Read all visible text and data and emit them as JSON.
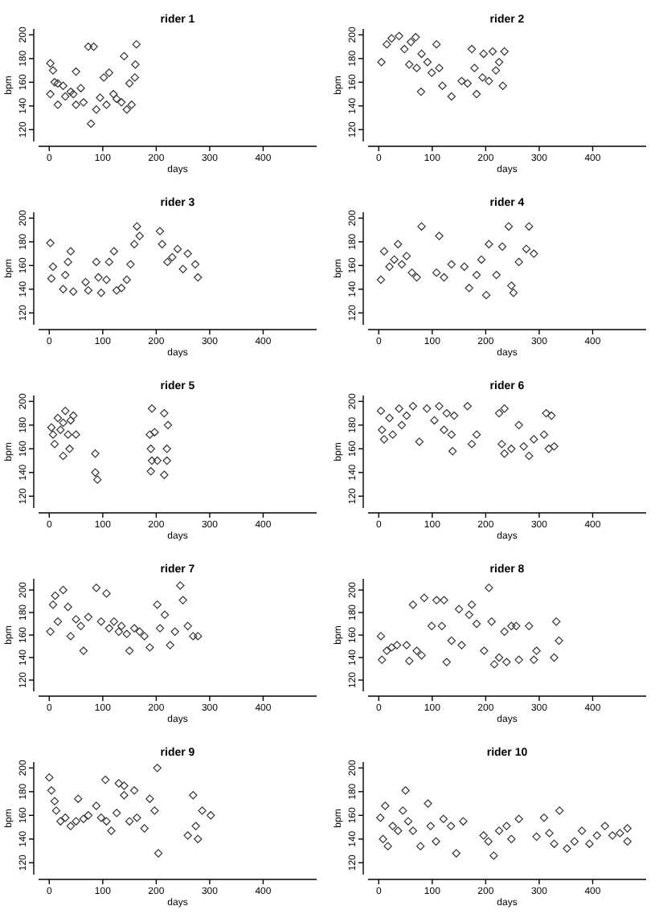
{
  "chart_data": [
    {
      "type": "scatter",
      "title": "rider 1",
      "xlabel": "days",
      "ylabel": "bpm",
      "marker": "diamond",
      "color": "#333333",
      "xlim": [
        -20,
        500
      ],
      "xticks": [
        0,
        100,
        200,
        300,
        400
      ],
      "ylim": [
        110,
        205
      ],
      "yticks": [
        120,
        140,
        160,
        180,
        200
      ],
      "x": [
        2,
        7,
        50,
        73,
        83,
        140,
        163,
        161,
        16,
        16,
        30,
        40,
        59,
        78,
        88,
        107,
        126,
        145,
        154,
        160,
        2,
        26,
        50,
        64,
        102,
        112,
        150,
        135,
        10,
        45,
        95,
        120
      ],
      "values": [
        176,
        170,
        169,
        190,
        190,
        182,
        192,
        175,
        159,
        141,
        148,
        152,
        155,
        125,
        137,
        141,
        146,
        137,
        141,
        164,
        150,
        157,
        141,
        143,
        164,
        168,
        159,
        143,
        160,
        150,
        147,
        150
      ]
    },
    {
      "type": "scatter",
      "title": "rider 2",
      "xlabel": "days",
      "ylabel": "bpm",
      "marker": "diamond",
      "color": "#333333",
      "xlim": [
        -20,
        500
      ],
      "xticks": [
        0,
        100,
        200,
        300,
        400
      ],
      "ylim": [
        110,
        205
      ],
      "yticks": [
        120,
        140,
        160,
        180,
        200
      ],
      "x": [
        5,
        15,
        24,
        38,
        48,
        60,
        69,
        57,
        71,
        80,
        91,
        99,
        108,
        113,
        79,
        119,
        136,
        155,
        166,
        174,
        179,
        183,
        194,
        196,
        206,
        213,
        219,
        225,
        232,
        235
      ],
      "values": [
        177,
        192,
        197,
        199,
        188,
        194,
        198,
        175,
        172,
        184,
        177,
        168,
        192,
        172,
        152,
        157,
        148,
        161,
        159,
        188,
        172,
        150,
        164,
        184,
        161,
        186,
        170,
        177,
        157,
        186
      ]
    },
    {
      "type": "scatter",
      "title": "rider 3",
      "xlabel": "days",
      "ylabel": "bpm",
      "marker": "diamond",
      "color": "#333333",
      "xlim": [
        -20,
        500
      ],
      "xticks": [
        0,
        100,
        200,
        300,
        400
      ],
      "ylim": [
        110,
        205
      ],
      "yticks": [
        120,
        140,
        160,
        180,
        200
      ],
      "x": [
        2,
        7,
        4,
        26,
        30,
        35,
        40,
        45,
        68,
        73,
        88,
        92,
        97,
        107,
        112,
        121,
        126,
        135,
        145,
        152,
        159,
        164,
        169,
        207,
        211,
        221,
        230,
        240,
        250,
        259,
        273,
        278
      ],
      "values": [
        179,
        159,
        149,
        140,
        152,
        163,
        172,
        138,
        146,
        139,
        163,
        150,
        137,
        148,
        163,
        172,
        139,
        141,
        148,
        161,
        178,
        193,
        185,
        189,
        178,
        163,
        167,
        174,
        157,
        170,
        161,
        150
      ]
    },
    {
      "type": "scatter",
      "title": "rider 4",
      "xlabel": "days",
      "ylabel": "bpm",
      "marker": "diamond",
      "color": "#333333",
      "xlim": [
        -20,
        500
      ],
      "xticks": [
        0,
        100,
        200,
        300,
        400
      ],
      "ylim": [
        110,
        205
      ],
      "yticks": [
        120,
        140,
        160,
        180,
        200
      ],
      "x": [
        4,
        10,
        20,
        29,
        36,
        43,
        52,
        62,
        71,
        80,
        113,
        108,
        122,
        136,
        160,
        169,
        183,
        192,
        201,
        206,
        220,
        231,
        243,
        248,
        252,
        262,
        276,
        281,
        290
      ],
      "values": [
        148,
        172,
        159,
        165,
        178,
        161,
        168,
        154,
        150,
        193,
        185,
        154,
        150,
        161,
        159,
        141,
        152,
        165,
        135,
        178,
        152,
        176,
        193,
        143,
        137,
        163,
        174,
        193,
        170
      ]
    },
    {
      "type": "scatter",
      "title": "rider 5",
      "xlabel": "days",
      "ylabel": "bpm",
      "marker": "diamond",
      "color": "#333333",
      "xlim": [
        -20,
        500
      ],
      "xticks": [
        0,
        100,
        200,
        300,
        400
      ],
      "ylim": [
        110,
        205
      ],
      "yticks": [
        120,
        140,
        160,
        180,
        200
      ],
      "x": [
        4,
        7,
        10,
        16,
        21,
        26,
        30,
        35,
        40,
        45,
        50,
        26,
        38,
        86,
        86,
        90,
        188,
        192,
        197,
        190,
        192,
        202,
        190,
        215,
        222,
        220,
        220,
        215
      ],
      "values": [
        178,
        172,
        164,
        186,
        176,
        182,
        192,
        172,
        184,
        188,
        172,
        154,
        160,
        156,
        140,
        134,
        172,
        194,
        174,
        160,
        150,
        150,
        141,
        190,
        180,
        160,
        150,
        138
      ]
    },
    {
      "type": "scatter",
      "title": "rider 6",
      "xlabel": "days",
      "ylabel": "bpm",
      "marker": "diamond",
      "color": "#333333",
      "xlim": [
        -20,
        500
      ],
      "xticks": [
        0,
        100,
        200,
        300,
        400
      ],
      "ylim": [
        110,
        205
      ],
      "yticks": [
        120,
        140,
        160,
        180,
        200
      ],
      "x": [
        4,
        6,
        10,
        20,
        26,
        38,
        43,
        52,
        64,
        76,
        90,
        104,
        113,
        122,
        127,
        136,
        141,
        138,
        166,
        174,
        183,
        225,
        235,
        230,
        235,
        248,
        262,
        271,
        281,
        290,
        309,
        313,
        323,
        318,
        328
      ],
      "values": [
        192,
        176,
        168,
        186,
        172,
        194,
        180,
        188,
        196,
        166,
        194,
        184,
        196,
        176,
        190,
        172,
        188,
        158,
        196,
        164,
        172,
        190,
        194,
        164,
        156,
        160,
        180,
        162,
        154,
        168,
        172,
        190,
        188,
        160,
        162
      ]
    },
    {
      "type": "scatter",
      "title": "rider 7",
      "xlabel": "days",
      "ylabel": "bpm",
      "marker": "diamond",
      "color": "#333333",
      "xlim": [
        -20,
        500
      ],
      "xticks": [
        0,
        100,
        200,
        300,
        400
      ],
      "ylim": [
        110,
        210
      ],
      "yticks": [
        120,
        140,
        160,
        180,
        200
      ],
      "x": [
        2,
        7,
        11,
        16,
        26,
        35,
        40,
        50,
        59,
        64,
        73,
        88,
        97,
        107,
        112,
        121,
        130,
        135,
        145,
        150,
        159,
        169,
        178,
        188,
        202,
        207,
        216,
        226,
        235,
        245,
        250,
        259,
        269,
        278
      ],
      "values": [
        163,
        187,
        195,
        172,
        200,
        185,
        159,
        174,
        168,
        146,
        176,
        202,
        172,
        197,
        166,
        172,
        163,
        168,
        161,
        146,
        166,
        163,
        159,
        149,
        187,
        166,
        178,
        151,
        163,
        204,
        191,
        168,
        159,
        159
      ]
    },
    {
      "type": "scatter",
      "title": "rider 8",
      "xlabel": "days",
      "ylabel": "bpm",
      "marker": "diamond",
      "color": "#333333",
      "xlim": [
        -20,
        500
      ],
      "xticks": [
        0,
        100,
        200,
        300,
        400
      ],
      "ylim": [
        110,
        210
      ],
      "yticks": [
        120,
        140,
        160,
        180,
        200
      ],
      "x": [
        4,
        6,
        15,
        24,
        34,
        52,
        57,
        64,
        71,
        80,
        85,
        99,
        108,
        118,
        122,
        127,
        136,
        150,
        155,
        169,
        174,
        183,
        197,
        206,
        211,
        216,
        225,
        235,
        239,
        248,
        257,
        262,
        281,
        290,
        295,
        328,
        332,
        337
      ],
      "values": [
        159,
        138,
        146,
        149,
        151,
        151,
        137,
        187,
        146,
        142,
        193,
        168,
        191,
        168,
        191,
        136,
        155,
        183,
        151,
        178,
        187,
        170,
        146,
        202,
        172,
        134,
        140,
        163,
        136,
        168,
        168,
        138,
        168,
        138,
        146,
        140,
        172,
        155
      ]
    },
    {
      "type": "scatter",
      "title": "rider 9",
      "xlabel": "days",
      "ylabel": "bpm",
      "marker": "diamond",
      "color": "#333333",
      "xlim": [
        -20,
        500
      ],
      "xticks": [
        0,
        100,
        200,
        300,
        400
      ],
      "ylim": [
        110,
        205
      ],
      "yticks": [
        120,
        140,
        160,
        180,
        200
      ],
      "x": [
        0,
        4,
        10,
        13,
        21,
        30,
        40,
        54,
        64,
        73,
        88,
        97,
        105,
        107,
        116,
        130,
        140,
        140,
        150,
        159,
        164,
        178,
        188,
        197,
        202,
        204,
        259,
        269,
        274,
        278,
        286,
        302,
        126,
        50
      ],
      "values": [
        192,
        181,
        172,
        164,
        155,
        158,
        151,
        174,
        157,
        160,
        168,
        158,
        190,
        155,
        147,
        187,
        185,
        177,
        155,
        181,
        158,
        149,
        174,
        164,
        200,
        128,
        143,
        177,
        151,
        140,
        164,
        160,
        162,
        155
      ]
    },
    {
      "type": "scatter",
      "title": "rider 10",
      "xlabel": "days",
      "ylabel": "bpm",
      "marker": "diamond",
      "color": "#333333",
      "xlim": [
        -20,
        500
      ],
      "xticks": [
        0,
        100,
        200,
        300,
        400
      ],
      "ylim": [
        110,
        205
      ],
      "yticks": [
        120,
        140,
        160,
        180,
        200
      ],
      "x": [
        3,
        8,
        12,
        17,
        26,
        36,
        45,
        50,
        55,
        64,
        78,
        92,
        97,
        107,
        121,
        135,
        145,
        158,
        196,
        205,
        215,
        225,
        239,
        248,
        262,
        295,
        309,
        319,
        328,
        338,
        352,
        366,
        380,
        394,
        408,
        423,
        437,
        451,
        465,
        465
      ],
      "values": [
        158,
        140,
        168,
        134,
        151,
        147,
        164,
        181,
        155,
        147,
        134,
        170,
        151,
        138,
        157,
        151,
        128,
        155,
        143,
        138,
        126,
        147,
        151,
        140,
        157,
        142,
        158,
        145,
        136,
        164,
        132,
        138,
        147,
        136,
        143,
        151,
        143,
        145,
        149,
        138
      ]
    }
  ]
}
